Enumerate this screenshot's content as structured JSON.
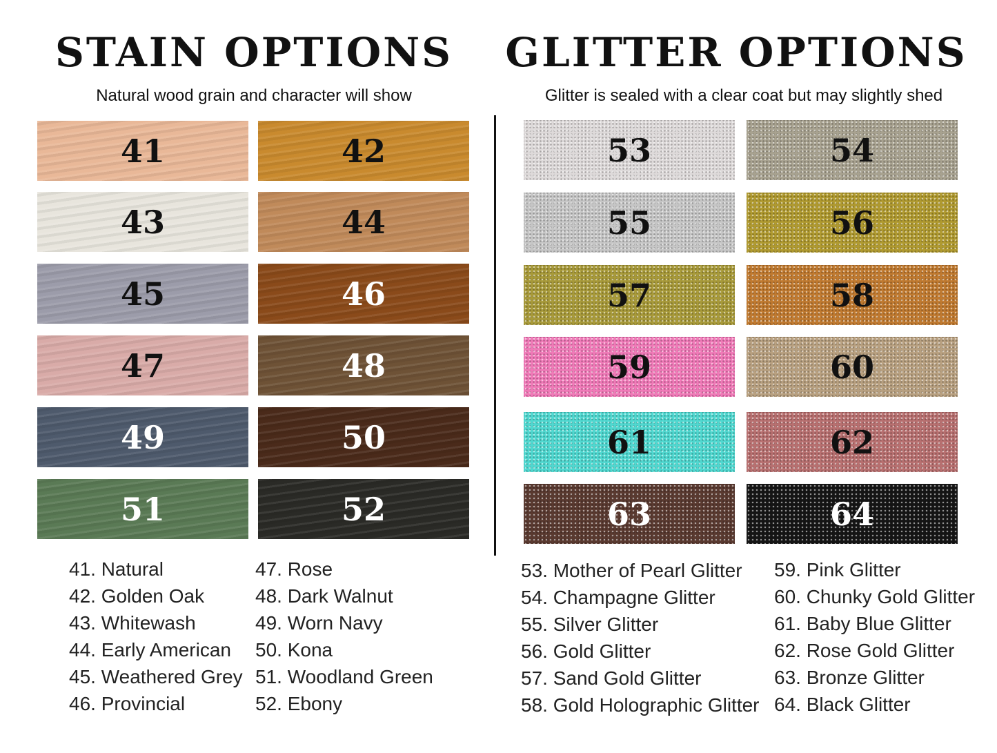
{
  "stain": {
    "title": "STAIN OPTIONS",
    "subtitle": "Natural wood grain and character will show",
    "swatches": [
      {
        "number": "41",
        "color": "#e9b898",
        "text_color": "#111"
      },
      {
        "number": "42",
        "color": "#c98a2e",
        "text_color": "#111"
      },
      {
        "number": "43",
        "color": "#e8e5dd",
        "text_color": "#111"
      },
      {
        "number": "44",
        "color": "#c08a5a",
        "text_color": "#111"
      },
      {
        "number": "45",
        "color": "#9c9caa",
        "text_color": "#111"
      },
      {
        "number": "46",
        "color": "#8a4a1a",
        "text_color": "#fff"
      },
      {
        "number": "47",
        "color": "#d9aba8",
        "text_color": "#111"
      },
      {
        "number": "48",
        "color": "#6e5236",
        "text_color": "#fff"
      },
      {
        "number": "49",
        "color": "#4e5a6c",
        "text_color": "#fff"
      },
      {
        "number": "50",
        "color": "#4a2a1a",
        "text_color": "#fff"
      },
      {
        "number": "51",
        "color": "#5a7a55",
        "text_color": "#fff"
      },
      {
        "number": "52",
        "color": "#2a2a26",
        "text_color": "#fff"
      }
    ],
    "list_col1": [
      "41. Natural",
      "42. Golden Oak",
      "43. Whitewash",
      "44. Early American",
      "45. Weathered Grey",
      "46. Provincial"
    ],
    "list_col2": [
      "47. Rose",
      "48. Dark Walnut",
      "49. Worn Navy",
      "50. Kona",
      "51. Woodland Green",
      "52. Ebony"
    ]
  },
  "glitter": {
    "title": "GLITTER OPTIONS",
    "subtitle": "Glitter is sealed with a clear coat but may slightly shed",
    "swatches": [
      {
        "number": "53",
        "color": "#dedada",
        "text_color": "#111"
      },
      {
        "number": "54",
        "color": "#a8a290",
        "text_color": "#111"
      },
      {
        "number": "55",
        "color": "#c6c6c6",
        "text_color": "#111"
      },
      {
        "number": "56",
        "color": "#b09a30",
        "text_color": "#111"
      },
      {
        "number": "57",
        "color": "#a89a3a",
        "text_color": "#111"
      },
      {
        "number": "58",
        "color": "#c07a30",
        "text_color": "#111"
      },
      {
        "number": "59",
        "color": "#f07ab8",
        "text_color": "#111"
      },
      {
        "number": "60",
        "color": "#b8a080",
        "text_color": "#111"
      },
      {
        "number": "61",
        "color": "#50d8d0",
        "text_color": "#111"
      },
      {
        "number": "62",
        "color": "#b87070",
        "text_color": "#111"
      },
      {
        "number": "63",
        "color": "#5a3a30",
        "text_color": "#fff"
      },
      {
        "number": "64",
        "color": "#151515",
        "text_color": "#fff"
      }
    ],
    "list_col1": [
      "53. Mother of Pearl Glitter",
      "54. Champagne Glitter",
      "55. Silver Glitter",
      "56. Gold Glitter",
      "57. Sand Gold Glitter",
      "58. Gold Holographic Glitter"
    ],
    "list_col2": [
      "59. Pink Glitter",
      "60. Chunky Gold Glitter",
      "61. Baby Blue Glitter",
      "62. Rose Gold Glitter",
      "63. Bronze Glitter",
      "64. Black Glitter"
    ]
  }
}
